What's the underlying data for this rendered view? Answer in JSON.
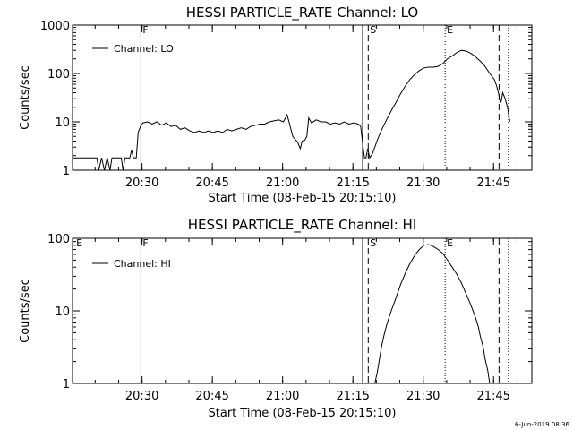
{
  "footer": {
    "timestamp": "6-Jun-2019 08:36"
  },
  "chart_data": [
    {
      "type": "line",
      "title": "HESSI PARTICLE_RATE Channel: LO",
      "xlabel": "Start Time (08-Feb-15 20:15:10)",
      "ylabel": "Counts/sec",
      "y_scale": "log",
      "ylim": [
        1,
        1000
      ],
      "y_ticks": [
        {
          "value": 1,
          "label": "1"
        },
        {
          "value": 10,
          "label": "10"
        },
        {
          "value": 100,
          "label": "100"
        },
        {
          "value": 1000,
          "label": "1000"
        }
      ],
      "x_start": "20:15:10",
      "xlim_minutes": [
        0,
        98
      ],
      "x_ticks": [
        {
          "value": 14.83,
          "label": "20:30"
        },
        {
          "value": 29.83,
          "label": "20:45"
        },
        {
          "value": 44.83,
          "label": "21:00"
        },
        {
          "value": 59.83,
          "label": "21:15"
        },
        {
          "value": 74.83,
          "label": "21:30"
        },
        {
          "value": 89.83,
          "label": "21:45"
        }
      ],
      "legend": {
        "label": "Channel: LO",
        "position": "top-left"
      },
      "markers": [
        {
          "x": 14.6,
          "label": "F",
          "style": "solid"
        },
        {
          "x": 61.9,
          "label": "",
          "style": "solid"
        },
        {
          "x": 63.1,
          "label": "S",
          "style": "dashed"
        },
        {
          "x": 79.5,
          "label": "E",
          "style": "dotted"
        },
        {
          "x": 91.0,
          "label": "",
          "style": "dashed"
        },
        {
          "x": 93.0,
          "label": "",
          "style": "dotted"
        }
      ],
      "series": [
        {
          "name": "Channel: LO",
          "points": [
            [
              0,
              1.8
            ],
            [
              4,
              1.8
            ],
            [
              5.2,
              1.8
            ],
            [
              5.6,
              1
            ],
            [
              6.2,
              1.8
            ],
            [
              6.8,
              1
            ],
            [
              7.4,
              1.8
            ],
            [
              8,
              1
            ],
            [
              8.4,
              1.8
            ],
            [
              10.4,
              1.8
            ],
            [
              10.8,
              1
            ],
            [
              11.2,
              1.8
            ],
            [
              12.2,
              1.8
            ],
            [
              12.6,
              2.6
            ],
            [
              13,
              1.8
            ],
            [
              13.6,
              1.8
            ],
            [
              14,
              6
            ],
            [
              14.5,
              8
            ],
            [
              15,
              9.5
            ],
            [
              16,
              10
            ],
            [
              17,
              9
            ],
            [
              18,
              10
            ],
            [
              19,
              8.5
            ],
            [
              20,
              9.5
            ],
            [
              21,
              8
            ],
            [
              22,
              8.5
            ],
            [
              23,
              7
            ],
            [
              24,
              7.5
            ],
            [
              25,
              6.5
            ],
            [
              26,
              6
            ],
            [
              27,
              6.5
            ],
            [
              28,
              6
            ],
            [
              29,
              6.5
            ],
            [
              30,
              6
            ],
            [
              31,
              6.5
            ],
            [
              32,
              6
            ],
            [
              33,
              7
            ],
            [
              34,
              6.5
            ],
            [
              35,
              7
            ],
            [
              36,
              7.5
            ],
            [
              37,
              7
            ],
            [
              38,
              8
            ],
            [
              39,
              8.5
            ],
            [
              40,
              9
            ],
            [
              41,
              9
            ],
            [
              42,
              10
            ],
            [
              43,
              10.5
            ],
            [
              44,
              11
            ],
            [
              45,
              10
            ],
            [
              45.8,
              14
            ],
            [
              46.2,
              10
            ],
            [
              47,
              5
            ],
            [
              48,
              3.8
            ],
            [
              48.6,
              2.8
            ],
            [
              49,
              4
            ],
            [
              49.6,
              4.2
            ],
            [
              50,
              5
            ],
            [
              50.4,
              12
            ],
            [
              51,
              9.5
            ],
            [
              52,
              11
            ],
            [
              53,
              10
            ],
            [
              54,
              10
            ],
            [
              55,
              9
            ],
            [
              56,
              9.5
            ],
            [
              57,
              9
            ],
            [
              58,
              10
            ],
            [
              59,
              9
            ],
            [
              60,
              9.5
            ],
            [
              61,
              9
            ],
            [
              61.5,
              8
            ],
            [
              61.9,
              3.6
            ],
            [
              62.3,
              1.8
            ],
            [
              62.6,
              1.8
            ],
            [
              63,
              2.8
            ],
            [
              63.4,
              1.8
            ],
            [
              64,
              2.2
            ],
            [
              64.6,
              3.2
            ],
            [
              65.2,
              4.6
            ],
            [
              66,
              7
            ],
            [
              67,
              11
            ],
            [
              68,
              17
            ],
            [
              69,
              25
            ],
            [
              70,
              38
            ],
            [
              71,
              55
            ],
            [
              72,
              75
            ],
            [
              73,
              95
            ],
            [
              74,
              115
            ],
            [
              75,
              130
            ],
            [
              76,
              135
            ],
            [
              77,
              135
            ],
            [
              78,
              140
            ],
            [
              79,
              160
            ],
            [
              80,
              200
            ],
            [
              81,
              230
            ],
            [
              82,
              270
            ],
            [
              83,
              300
            ],
            [
              84,
              290
            ],
            [
              85,
              260
            ],
            [
              86,
              220
            ],
            [
              87,
              180
            ],
            [
              88,
              140
            ],
            [
              89,
              100
            ],
            [
              90,
              75
            ],
            [
              90.5,
              55
            ],
            [
              91,
              35
            ],
            [
              91.4,
              25
            ],
            [
              91.8,
              40
            ],
            [
              92.3,
              30
            ],
            [
              92.8,
              20
            ],
            [
              93.3,
              10
            ]
          ]
        }
      ]
    },
    {
      "type": "line",
      "title": "HESSI PARTICLE_RATE Channel: HI",
      "xlabel": "Start Time (08-Feb-15 20:15:10)",
      "ylabel": "Counts/sec",
      "y_scale": "log",
      "ylim": [
        1,
        100
      ],
      "y_ticks": [
        {
          "value": 1,
          "label": "1"
        },
        {
          "value": 10,
          "label": "10"
        },
        {
          "value": 100,
          "label": "100"
        }
      ],
      "x_start": "20:15:10",
      "xlim_minutes": [
        0,
        98
      ],
      "x_ticks": [
        {
          "value": 14.83,
          "label": "20:30"
        },
        {
          "value": 29.83,
          "label": "20:45"
        },
        {
          "value": 44.83,
          "label": "21:00"
        },
        {
          "value": 59.83,
          "label": "21:15"
        },
        {
          "value": 74.83,
          "label": "21:30"
        },
        {
          "value": 89.83,
          "label": "21:45"
        }
      ],
      "legend": {
        "label": "Channel: HI",
        "position": "top-left"
      },
      "markers": [
        {
          "x": 0.4,
          "label": "E",
          "style": "none"
        },
        {
          "x": 14.6,
          "label": "F",
          "style": "solid"
        },
        {
          "x": 61.9,
          "label": "",
          "style": "solid"
        },
        {
          "x": 63.1,
          "label": "S",
          "style": "dashed"
        },
        {
          "x": 79.5,
          "label": "E",
          "style": "dotted"
        },
        {
          "x": 91.0,
          "label": "",
          "style": "dashed"
        },
        {
          "x": 93.0,
          "label": "",
          "style": "dotted"
        }
      ],
      "series": [
        {
          "name": "Channel: HI",
          "points": [
            [
              64.5,
              1
            ],
            [
              65,
              1.4
            ],
            [
              65.5,
              2.2
            ],
            [
              66,
              3.4
            ],
            [
              66.6,
              5
            ],
            [
              67.2,
              7
            ],
            [
              68,
              10
            ],
            [
              69,
              15
            ],
            [
              70,
              23
            ],
            [
              71,
              33
            ],
            [
              72,
              45
            ],
            [
              73,
              58
            ],
            [
              74,
              70
            ],
            [
              75,
              80
            ],
            [
              76,
              82
            ],
            [
              77,
              77
            ],
            [
              78,
              70
            ],
            [
              79,
              62
            ],
            [
              80,
              50
            ],
            [
              81,
              40
            ],
            [
              82,
              32
            ],
            [
              83,
              24
            ],
            [
              84,
              17
            ],
            [
              85,
              12
            ],
            [
              86,
              8
            ],
            [
              86.6,
              6
            ],
            [
              87,
              4.5
            ],
            [
              87.6,
              3.2
            ],
            [
              88,
              2.2
            ],
            [
              88.6,
              1.5
            ],
            [
              89,
              1
            ]
          ]
        }
      ]
    }
  ]
}
